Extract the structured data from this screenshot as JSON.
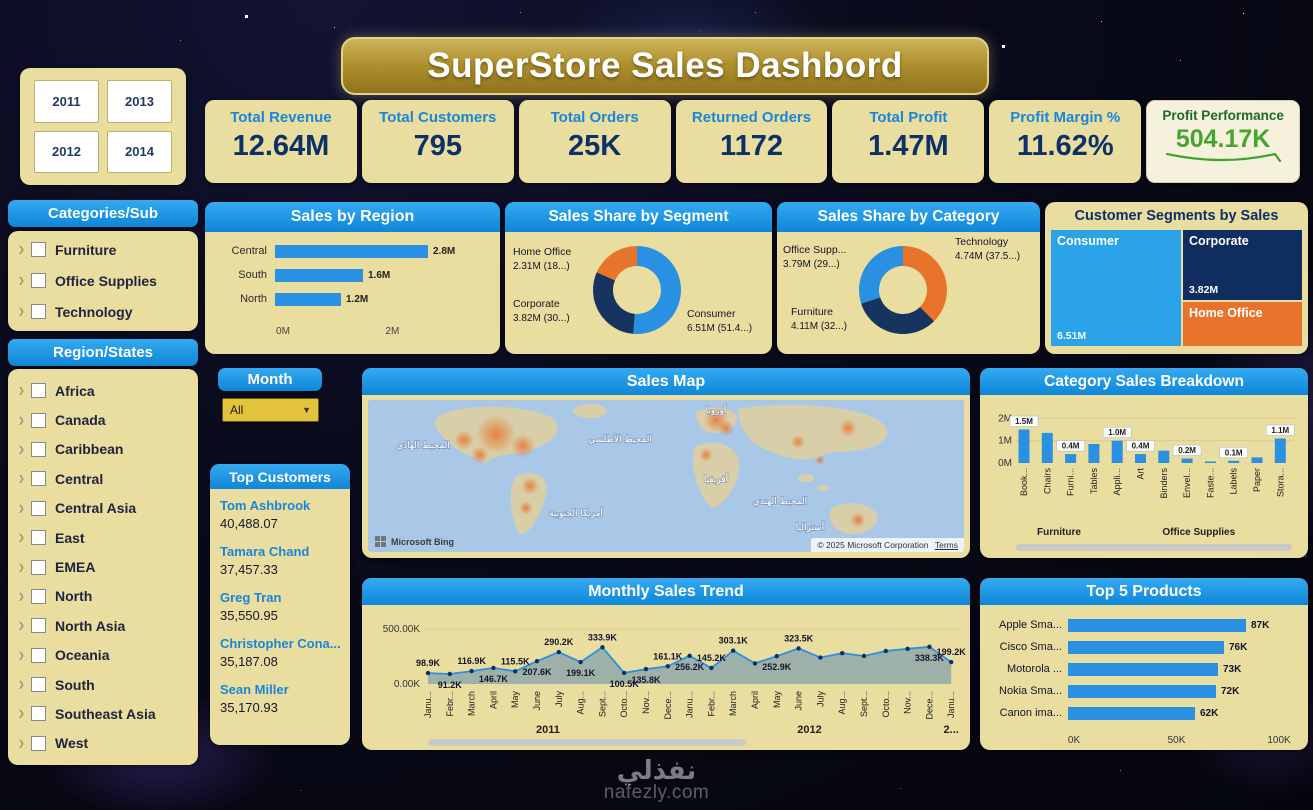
{
  "title": "SuperStore Sales Dashbord",
  "year_filter": {
    "years": [
      "2011",
      "2013",
      "2012",
      "2014"
    ]
  },
  "kpis": [
    {
      "label": "Total Revenue",
      "value": "12.64M"
    },
    {
      "label": "Total Customers",
      "value": "795"
    },
    {
      "label": "Total Orders",
      "value": "25K"
    },
    {
      "label": "Returned Orders",
      "value": "1172"
    },
    {
      "label": "Total Profit",
      "value": "1.47M"
    },
    {
      "label": "Profit Margin %",
      "value": "11.62%"
    }
  ],
  "profit_performance": {
    "label": "Profit Performance",
    "value": "504.17K"
  },
  "category_filter": {
    "title": "Categories/Sub",
    "items": [
      "Furniture",
      "Office Supplies",
      "Technology"
    ]
  },
  "region_filter": {
    "title": "Region/States",
    "items": [
      "Africa",
      "Canada",
      "Caribbean",
      "Central",
      "Central Asia",
      "East",
      "EMEA",
      "North",
      "North Asia",
      "Oceania",
      "South",
      "Southeast Asia",
      "West"
    ]
  },
  "month_filter": {
    "label": "Month",
    "value": "All"
  },
  "top_customers": {
    "title": "Top Customers",
    "customers": [
      {
        "name": "Tom Ashbrook",
        "value": "40,488.07"
      },
      {
        "name": "Tamara Chand",
        "value": "37,457.33"
      },
      {
        "name": "Greg Tran",
        "value": "35,550.95"
      },
      {
        "name": "Christopher Cona...",
        "value": "35,187.08"
      },
      {
        "name": "Sean Miller",
        "value": "35,170.93"
      }
    ]
  },
  "map": {
    "title": "Sales Map",
    "labels": {
      "europe": "أوروبا",
      "pacific": "المحيط الهادي",
      "atlantic": "المحيط الأطلسي",
      "africa": "أفريقيا",
      "south_america": "أمريكا الجنوبية",
      "australia": "أستراليا",
      "indian_ocean": "المحيط الهندي"
    },
    "attribution": "Microsoft Bing",
    "copyright": "© 2025 Microsoft Corporation",
    "terms": "Terms"
  },
  "watermark": {
    "arabic": "نفذلي",
    "site": "nafezly.com"
  },
  "colors": {
    "header_blue": "#1697e8",
    "card_tan": "#e9dda0",
    "bar_blue": "#2a90e2",
    "navy": "#0d3166",
    "orange": "#e8742c",
    "treemap_blue": "#2aa3e8",
    "corporate_navy": "#0f2d5e",
    "profit_green": "#46a52e"
  },
  "chart_data": [
    {
      "id": "sales_by_region",
      "type": "bar",
      "orientation": "horizontal",
      "title": "Sales by Region",
      "categories": [
        "Central",
        "South",
        "North"
      ],
      "values": [
        2.8,
        1.6,
        1.2
      ],
      "value_labels": [
        "2.8M",
        "1.6M",
        "1.2M"
      ],
      "x_ticks": [
        {
          "label": "0M",
          "value": 0
        },
        {
          "label": "2M",
          "value": 2
        }
      ],
      "xlim": [
        0,
        3.2
      ]
    },
    {
      "id": "sales_share_by_segment",
      "type": "pie",
      "title": "Sales Share by Segment",
      "slices": [
        {
          "name": "Consumer",
          "detail": "6.51M (51.4...)",
          "value": 51.4,
          "color": "#2a90e2"
        },
        {
          "name": "Corporate",
          "detail": "3.82M (30...)",
          "value": 30.2,
          "color": "#16345f"
        },
        {
          "name": "Home Office",
          "detail": "2.31M (18...)",
          "value": 18.4,
          "color": "#e8742c"
        }
      ]
    },
    {
      "id": "sales_share_by_category",
      "type": "pie",
      "title": "Sales Share by Category",
      "slices": [
        {
          "name": "Technology",
          "detail": "4.74M (37.5...)",
          "value": 37.5,
          "color": "#e8742c"
        },
        {
          "name": "Furniture",
          "detail": "4.11M (32...)",
          "value": 32.5,
          "color": "#16345f"
        },
        {
          "name": "Office Supp...",
          "detail": "3.79M (29...)",
          "value": 30.0,
          "color": "#2a90e2"
        }
      ]
    },
    {
      "id": "customer_segments_by_sales",
      "type": "treemap",
      "title": "Customer Segments by Sales",
      "cells": [
        {
          "name": "Consumer",
          "value": "6.51M",
          "color": "#2aa3e8"
        },
        {
          "name": "Corporate",
          "value": "3.82M",
          "color": "#0f2d5e"
        },
        {
          "name": "Home Office",
          "value": "",
          "color": "#e8742c"
        }
      ]
    },
    {
      "id": "category_sales_breakdown",
      "type": "bar",
      "title": "Category Sales Breakdown",
      "ylim": [
        0,
        2.3
      ],
      "y_ticks": [
        {
          "label": "0M",
          "value": 0
        },
        {
          "label": "1M",
          "value": 1
        },
        {
          "label": "2M",
          "value": 2
        }
      ],
      "bars": [
        {
          "category": "Book...",
          "value": 1.5,
          "label": "1.5M"
        },
        {
          "category": "Chairs",
          "value": 1.35,
          "label": ""
        },
        {
          "category": "Furni...",
          "value": 0.4,
          "label": "0.4M"
        },
        {
          "category": "Tables",
          "value": 0.85,
          "label": ""
        },
        {
          "category": "Appli...",
          "value": 1.0,
          "label": "1.0M"
        },
        {
          "category": "Art",
          "value": 0.4,
          "label": "0.4M"
        },
        {
          "category": "Binders",
          "value": 0.55,
          "label": ""
        },
        {
          "category": "Envel...",
          "value": 0.2,
          "label": "0.2M"
        },
        {
          "category": "Faste...",
          "value": 0.05,
          "label": ""
        },
        {
          "category": "Labels",
          "value": 0.1,
          "label": "0.1M"
        },
        {
          "category": "Paper",
          "value": 0.25,
          "label": ""
        },
        {
          "category": "Stora...",
          "value": 1.1,
          "label": "1.1M"
        }
      ],
      "groups": [
        {
          "label": "Furniture",
          "from": 0,
          "to": 3
        },
        {
          "label": "Office Supplies",
          "from": 4,
          "to": 11
        }
      ]
    },
    {
      "id": "monthly_sales_trend",
      "type": "area",
      "title": "Monthly Sales Trend",
      "ylim": [
        0,
        560
      ],
      "y_ticks": [
        {
          "label": "0.00K",
          "value": 0
        },
        {
          "label": "500.00K",
          "value": 500
        }
      ],
      "years": [
        {
          "label": "2011",
          "from": 0,
          "to": 11
        },
        {
          "label": "2012",
          "from": 12,
          "to": 23
        },
        {
          "label": "2...",
          "from": 24,
          "to": 24
        }
      ],
      "points": [
        {
          "month": "Janu...",
          "value": 98.9,
          "label": "98.9K",
          "label_pos": "above"
        },
        {
          "month": "Febr...",
          "value": 91.2,
          "label": "91.2K",
          "label_pos": "below"
        },
        {
          "month": "March",
          "value": 116.9,
          "label": "116.9K",
          "label_pos": "above"
        },
        {
          "month": "April",
          "value": 146.7,
          "label": "146.7K",
          "label_pos": "below"
        },
        {
          "month": "May",
          "value": 115.5,
          "label": "115.5K",
          "label_pos": "above"
        },
        {
          "month": "June",
          "value": 207.6,
          "label": "207.6K",
          "label_pos": "below"
        },
        {
          "month": "July",
          "value": 290.2,
          "label": "290.2K",
          "label_pos": "above"
        },
        {
          "month": "Aug...",
          "value": 199.1,
          "label": "199.1K",
          "label_pos": "below"
        },
        {
          "month": "Sept...",
          "value": 333.9,
          "label": "333.9K",
          "label_pos": "above"
        },
        {
          "month": "Octo...",
          "value": 100.5,
          "label": "100.5K",
          "label_pos": "below"
        },
        {
          "month": "Nov...",
          "value": 135.8,
          "label": "135.8K",
          "label_pos": "below"
        },
        {
          "month": "Dece...",
          "value": 161.1,
          "label": "161.1K",
          "label_pos": "above"
        },
        {
          "month": "Janu...",
          "value": 256.2,
          "label": "256.2K",
          "label_pos": "below"
        },
        {
          "month": "Febr...",
          "value": 145.2,
          "label": "145.2K",
          "label_pos": "above"
        },
        {
          "month": "March",
          "value": 303.1,
          "label": "303.1K",
          "label_pos": "above"
        },
        {
          "month": "April",
          "value": 187.0,
          "label": "",
          "label_pos": "below"
        },
        {
          "month": "May",
          "value": 252.9,
          "label": "252.9K",
          "label_pos": "below"
        },
        {
          "month": "June",
          "value": 323.5,
          "label": "323.5K",
          "label_pos": "above"
        },
        {
          "month": "July",
          "value": 240.0,
          "label": "",
          "label_pos": "below"
        },
        {
          "month": "Aug...",
          "value": 280.0,
          "label": "",
          "label_pos": "above"
        },
        {
          "month": "Sept...",
          "value": 255.0,
          "label": "",
          "label_pos": "below"
        },
        {
          "month": "Octo...",
          "value": 300.0,
          "label": "",
          "label_pos": "above"
        },
        {
          "month": "Nov...",
          "value": 320.0,
          "label": "",
          "label_pos": "above"
        },
        {
          "month": "Dece...",
          "value": 338.3,
          "label": "338.3K",
          "label_pos": "below"
        },
        {
          "month": "Janu...",
          "value": 199.2,
          "label": "199.2K",
          "label_pos": "above"
        }
      ]
    },
    {
      "id": "top_5_products",
      "type": "bar",
      "orientation": "horizontal",
      "title": "Top 5 Products",
      "products": [
        {
          "name": "Apple Sma...",
          "value": 87,
          "label": "87K"
        },
        {
          "name": "Cisco Sma...",
          "value": 76,
          "label": "76K"
        },
        {
          "name": "Motorola ...",
          "value": 73,
          "label": "73K"
        },
        {
          "name": "Nokia Sma...",
          "value": 72,
          "label": "72K"
        },
        {
          "name": "Canon ima...",
          "value": 62,
          "label": "62K"
        }
      ],
      "x_ticks": [
        {
          "label": "0K",
          "value": 0
        },
        {
          "label": "50K",
          "value": 50
        },
        {
          "label": "100K",
          "value": 100
        }
      ],
      "xlim": [
        0,
        100
      ]
    }
  ]
}
